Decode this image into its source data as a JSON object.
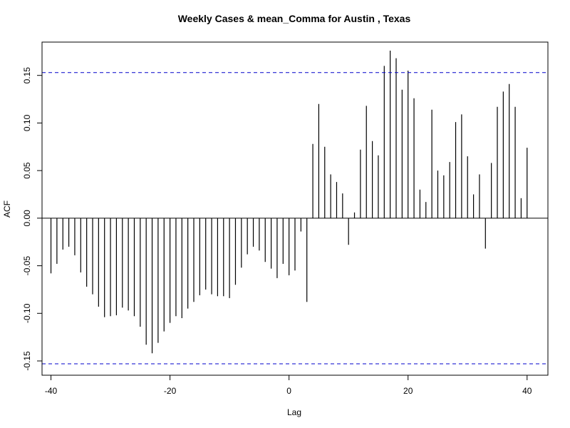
{
  "chart_data": {
    "type": "bar",
    "title": "Weekly Cases & mean_Comma for Austin , Texas",
    "xlabel": "Lag",
    "ylabel": "ACF",
    "xlim": [
      -41.5,
      43.5
    ],
    "ylim": [
      -0.165,
      0.185
    ],
    "xticks": [
      -40,
      -20,
      0,
      20,
      40
    ],
    "yticks": [
      -0.15,
      -0.1,
      -0.05,
      0.0,
      0.05,
      0.1,
      0.15
    ],
    "ytick_labels": [
      "-0.15",
      "-0.10",
      "-0.05",
      "0.00",
      "0.05",
      "0.10",
      "0.15"
    ],
    "confidence_bounds": [
      0.153,
      -0.153
    ],
    "colors": {
      "bars": "#000000",
      "bounds": "#0000cc"
    },
    "x": [
      -40,
      -39,
      -38,
      -37,
      -36,
      -35,
      -34,
      -33,
      -32,
      -31,
      -30,
      -29,
      -28,
      -27,
      -26,
      -25,
      -24,
      -23,
      -22,
      -21,
      -20,
      -19,
      -18,
      -17,
      -16,
      -15,
      -14,
      -13,
      -12,
      -11,
      -10,
      -9,
      -8,
      -7,
      -6,
      -5,
      -4,
      -3,
      -2,
      -1,
      0,
      1,
      2,
      3,
      4,
      5,
      6,
      7,
      8,
      9,
      10,
      11,
      12,
      13,
      14,
      15,
      16,
      17,
      18,
      19,
      20,
      21,
      22,
      23,
      24,
      25,
      26,
      27,
      28,
      29,
      30,
      31,
      32,
      33,
      34,
      35,
      36,
      37,
      38,
      39,
      40
    ],
    "values": [
      -0.058,
      -0.048,
      -0.033,
      -0.03,
      -0.039,
      -0.057,
      -0.072,
      -0.08,
      -0.093,
      -0.104,
      -0.103,
      -0.102,
      -0.094,
      -0.097,
      -0.103,
      -0.114,
      -0.133,
      -0.142,
      -0.131,
      -0.119,
      -0.11,
      -0.103,
      -0.105,
      -0.095,
      -0.088,
      -0.081,
      -0.075,
      -0.08,
      -0.082,
      -0.082,
      -0.084,
      -0.07,
      -0.052,
      -0.038,
      -0.03,
      -0.034,
      -0.046,
      -0.053,
      -0.063,
      -0.048,
      -0.06,
      -0.055,
      -0.014,
      -0.088,
      0.078,
      0.12,
      0.075,
      0.046,
      0.038,
      0.026,
      -0.028,
      0.006,
      0.072,
      0.118,
      0.081,
      0.066,
      0.16,
      0.176,
      0.168,
      0.135,
      0.155,
      0.126,
      0.03,
      0.017,
      0.114,
      0.05,
      0.045,
      0.059,
      0.101,
      0.109,
      0.065,
      0.025,
      0.046,
      -0.032,
      0.058,
      0.117,
      0.133,
      0.141,
      0.117,
      0.021,
      0.074
    ]
  }
}
